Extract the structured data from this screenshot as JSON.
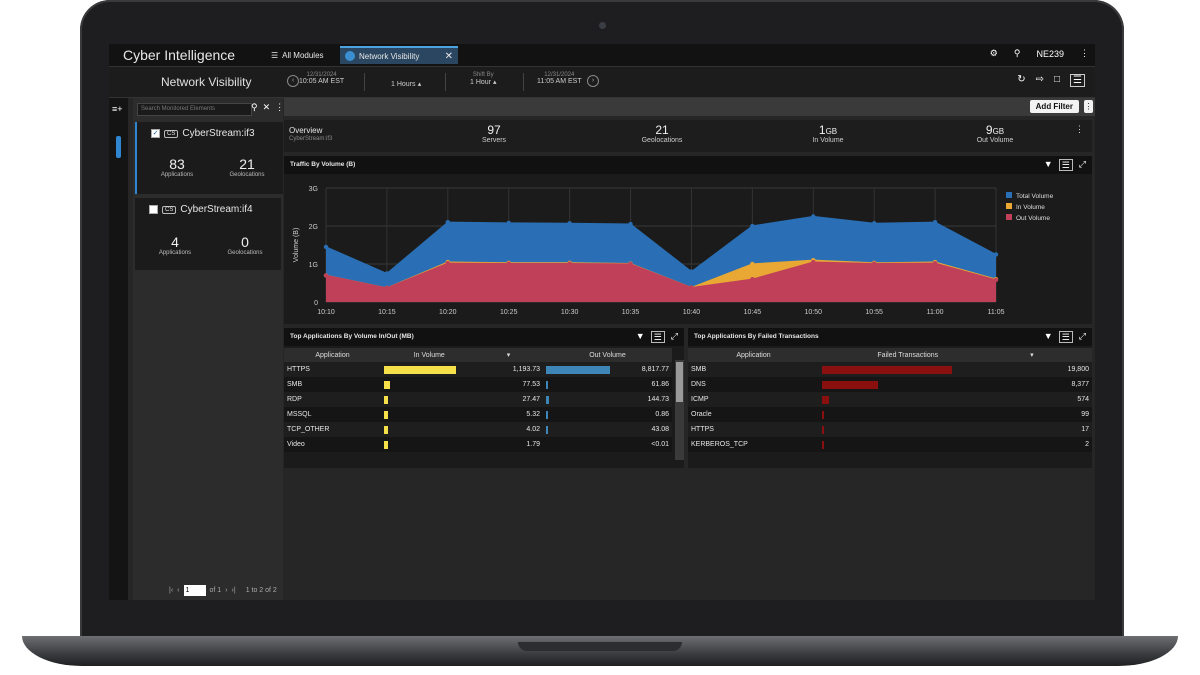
{
  "app_title": "Cyber Intelligence",
  "tabs": [
    {
      "label": "All Modules"
    },
    {
      "label": "Network Visibility"
    }
  ],
  "user": "NE239",
  "page_title": "Network Visibility",
  "timeline": {
    "start_date": "12/31/2024",
    "start_time": "10:05 AM EST",
    "duration": "1 Hours",
    "shift_label": "Shift By",
    "shift": "1 Hour",
    "end_date": "12/31/2024",
    "end_time": "11:05 AM EST"
  },
  "search_placeholder": "Search Monitored Elements",
  "add_filter_label": "Add Filter",
  "elements": [
    {
      "cs": "CS",
      "name": "CyberStream:if3",
      "checked": true,
      "applications": "83",
      "applications_label": "Applications",
      "geolocations": "21",
      "geolocations_label": "Geolocations"
    },
    {
      "cs": "CS",
      "name": "CyberStream:if4",
      "checked": false,
      "applications": "4",
      "applications_label": "Applications",
      "geolocations": "0",
      "geolocations_label": "Geolocations"
    }
  ],
  "pager": {
    "page": "1",
    "of": "of 1",
    "range": "1 to 2 of 2"
  },
  "overview": {
    "title": "Overview",
    "subtitle": "CyberStream:if3",
    "servers": "97",
    "servers_label": "Servers",
    "geolocations": "21",
    "geolocations_label": "Geolocations",
    "in_volume": "1",
    "in_volume_unit": "GB",
    "in_volume_label": "In Volume",
    "out_volume": "9",
    "out_volume_unit": "GB",
    "out_volume_label": "Out Volume"
  },
  "chart_data": {
    "type": "area",
    "title": "Traffic By Volume (B)",
    "ylabel": "Volume (B)",
    "x": [
      "10:10",
      "10:15",
      "10:20",
      "10:25",
      "10:30",
      "10:35",
      "10:40",
      "10:45",
      "10:50",
      "10:55",
      "11:00",
      "11:05"
    ],
    "yticks": [
      "0",
      "1G",
      "2G",
      "3G"
    ],
    "ylim": [
      0,
      3
    ],
    "grid": true,
    "legend_position": "top-right",
    "series": [
      {
        "name": "Total Volume",
        "color": "#2a6fb5",
        "values": [
          1.45,
          0.75,
          2.1,
          2.08,
          2.07,
          2.05,
          0.8,
          2.0,
          2.25,
          2.07,
          2.1,
          1.25
        ]
      },
      {
        "name": "In Volume",
        "color": "#e8a833",
        "values": [
          0.7,
          0.37,
          1.05,
          1.03,
          1.03,
          1.01,
          0.38,
          1.0,
          1.1,
          1.03,
          1.05,
          0.6
        ]
      },
      {
        "name": "Out Volume",
        "color": "#c0405a",
        "values": [
          0.7,
          0.37,
          1.02,
          1.01,
          1.01,
          1.0,
          0.38,
          0.6,
          1.05,
          1.01,
          1.02,
          0.58
        ]
      }
    ]
  },
  "top_apps_volume": {
    "title": "Top Applications By Volume In/Out (MB)",
    "headers": [
      "Application",
      "In Volume",
      "Out Volume"
    ],
    "rows": [
      {
        "app": "HTTPS",
        "in": "1,193.73",
        "in_frac": 1.0,
        "out": "8,817.77",
        "out_frac": 1.0
      },
      {
        "app": "SMB",
        "in": "77.53",
        "in_frac": 0.08,
        "out": "61.86",
        "out_frac": 0.03
      },
      {
        "app": "RDP",
        "in": "27.47",
        "in_frac": 0.06,
        "out": "144.73",
        "out_frac": 0.04
      },
      {
        "app": "MSSQL",
        "in": "5.32",
        "in_frac": 0.03,
        "out": "0.86",
        "out_frac": 0.02
      },
      {
        "app": "TCP_OTHER",
        "in": "4.02",
        "in_frac": 0.03,
        "out": "43.08",
        "out_frac": 0.02
      },
      {
        "app": "Video",
        "in": "1.79",
        "in_frac": 0.02,
        "out": "<0.01",
        "out_frac": 0.0
      }
    ]
  },
  "top_apps_failed": {
    "title": "Top Applications By Failed Transactions",
    "headers": [
      "Application",
      "Failed Transactions"
    ],
    "rows": [
      {
        "app": "SMB",
        "value": "19,800",
        "frac": 1.0
      },
      {
        "app": "DNS",
        "value": "8,377",
        "frac": 0.43
      },
      {
        "app": "ICMP",
        "value": "574",
        "frac": 0.05
      },
      {
        "app": "Oracle",
        "value": "99",
        "frac": 0.01
      },
      {
        "app": "HTTPS",
        "value": "17",
        "frac": 0.01
      },
      {
        "app": "KERBEROS_TCP",
        "value": "2",
        "frac": 0.005
      }
    ]
  },
  "colors": {
    "accent": "#2f86d1",
    "in_bar": "#f5e04a",
    "out_bar": "#3f86b8",
    "failed_bar": "#8a0f0f"
  }
}
